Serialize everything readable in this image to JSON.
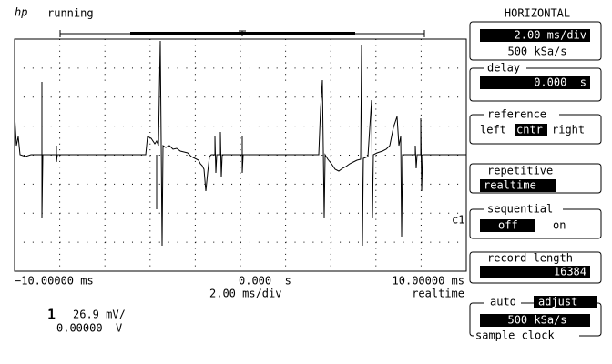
{
  "header": {
    "logo": "hp",
    "status": "running"
  },
  "screen": {
    "channel_label": "c1",
    "x_left": "−10.00000 ms",
    "x_center": "0.000  s",
    "x_right": "10.00000 ms",
    "timebase": "2.00 ms/div",
    "mode": "realtime"
  },
  "channel": {
    "number": "1",
    "scale": "26.9 mV/",
    "offset": "0.00000  V"
  },
  "panel": {
    "title": "HORIZONTAL",
    "timebase": {
      "value": "2.00 ms/div",
      "rate": "500 kSa/s"
    },
    "delay": {
      "label": "delay",
      "value": "0.000  s"
    },
    "reference": {
      "label": "reference",
      "left": "left",
      "center": "cntr",
      "right": "right"
    },
    "repetitive": {
      "label": "repetitive",
      "value": "realtime"
    },
    "sequential": {
      "label": "sequential",
      "off": "off",
      "on": "on"
    },
    "record_length": {
      "label": "record length",
      "value": "16384"
    },
    "sample_clock": {
      "auto": "auto",
      "adjust": "adjust",
      "value": "500 kSa/s",
      "label": "sample clock"
    }
  }
}
